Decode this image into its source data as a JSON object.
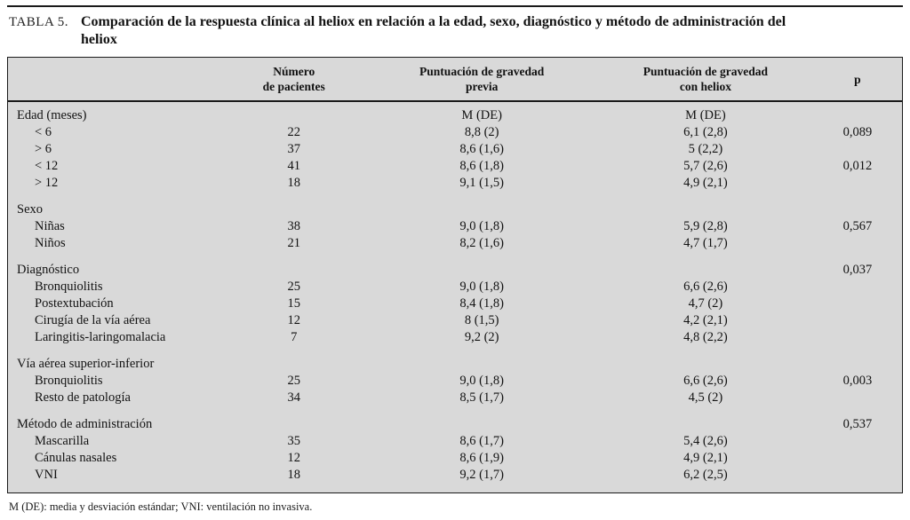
{
  "colors": {
    "table_background": "#d9d9d9",
    "rule": "#1a1a1a",
    "text": "#121212"
  },
  "caption": {
    "label": "TABLA 5.",
    "title": "Comparación de la respuesta clínica al heliox en relación a la edad, sexo, diagnóstico y método de administración del heliox"
  },
  "table": {
    "columns": [
      "",
      "Número\nde pacientes",
      "Puntuación de gravedad\nprevia",
      "Puntuación de gravedad\ncon heliox",
      "p"
    ],
    "rows": [
      {
        "type": "group",
        "label": "Edad (meses)",
        "n": "",
        "prev": "M (DE)",
        "heliox": "M (DE)",
        "p": ""
      },
      {
        "type": "item",
        "label": "< 6",
        "n": "22",
        "prev": "8,8 (2)",
        "heliox": "6,1 (2,8)",
        "p": "0,089"
      },
      {
        "type": "item",
        "label": "> 6",
        "n": "37",
        "prev": "8,6 (1,6)",
        "heliox": "5 (2,2)",
        "p": ""
      },
      {
        "type": "item",
        "label": "< 12",
        "n": "41",
        "prev": "8,6 (1,8)",
        "heliox": "5,7 (2,6)",
        "p": "0,012"
      },
      {
        "type": "item",
        "label": "> 12",
        "n": "18",
        "prev": "9,1 (1,5)",
        "heliox": "4,9 (2,1)",
        "p": ""
      },
      {
        "type": "group",
        "label": "Sexo",
        "n": "",
        "prev": "",
        "heliox": "",
        "p": ""
      },
      {
        "type": "item",
        "label": "Niñas",
        "n": "38",
        "prev": "9,0 (1,8)",
        "heliox": "5,9 (2,8)",
        "p": "0,567"
      },
      {
        "type": "item",
        "label": "Niños",
        "n": "21",
        "prev": "8,2 (1,6)",
        "heliox": "4,7 (1,7)",
        "p": ""
      },
      {
        "type": "group",
        "label": "Diagnóstico",
        "n": "",
        "prev": "",
        "heliox": "",
        "p": "0,037"
      },
      {
        "type": "item",
        "label": "Bronquiolitis",
        "n": "25",
        "prev": "9,0 (1,8)",
        "heliox": "6,6 (2,6)",
        "p": ""
      },
      {
        "type": "item",
        "label": "Postextubación",
        "n": "15",
        "prev": "8,4 (1,8)",
        "heliox": "4,7 (2)",
        "p": ""
      },
      {
        "type": "item",
        "label": "Cirugía de la vía aérea",
        "n": "12",
        "prev": "8 (1,5)",
        "heliox": "4,2 (2,1)",
        "p": ""
      },
      {
        "type": "item",
        "label": "Laringitis-laringomalacia",
        "n": "7",
        "prev": "9,2 (2)",
        "heliox": "4,8 (2,2)",
        "p": ""
      },
      {
        "type": "group",
        "label": "Vía aérea superior-inferior",
        "n": "",
        "prev": "",
        "heliox": "",
        "p": ""
      },
      {
        "type": "item",
        "label": "Bronquiolitis",
        "n": "25",
        "prev": "9,0 (1,8)",
        "heliox": "6,6 (2,6)",
        "p": "0,003"
      },
      {
        "type": "item",
        "label": "Resto de patología",
        "n": "34",
        "prev": "8,5 (1,7)",
        "heliox": "4,5 (2)",
        "p": ""
      },
      {
        "type": "group",
        "label": "Método de administración",
        "n": "",
        "prev": "",
        "heliox": "",
        "p": "0,537"
      },
      {
        "type": "item",
        "label": "Mascarilla",
        "n": "35",
        "prev": "8,6 (1,7)",
        "heliox": "5,4 (2,6)",
        "p": ""
      },
      {
        "type": "item",
        "label": "Cánulas nasales",
        "n": "12",
        "prev": "8,6 (1,9)",
        "heliox": "4,9 (2,1)",
        "p": ""
      },
      {
        "type": "item",
        "label": "VNI",
        "n": "18",
        "prev": "9,2 (1,7)",
        "heliox": "6,2 (2,5)",
        "p": ""
      }
    ]
  },
  "footnote": "M (DE): media y desviación estándar; VNI: ventilación no invasiva."
}
